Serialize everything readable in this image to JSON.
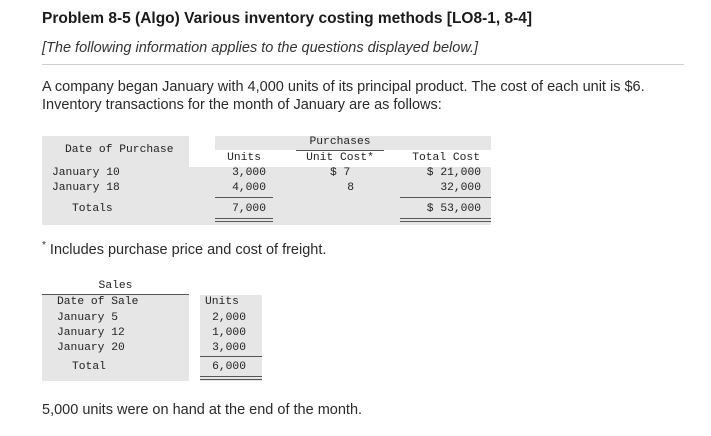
{
  "header": {
    "title": "Problem 8-5 (Algo) Various inventory costing methods [LO8-1, 8-4]",
    "subtitle": "[The following information applies to the questions displayed below.]"
  },
  "intro": "A company began January with 4,000 units of its principal product. The cost of each unit is $6. Inventory transactions for the month of January are as follows:",
  "purchases": {
    "col_date": "Date of Purchase",
    "group_header": "Purchases",
    "col_units": "Units",
    "col_unit_cost": "Unit Cost*",
    "col_total_cost": "Total Cost",
    "rows": [
      {
        "date": "January 10",
        "units": "3,000",
        "unit_cost": "$ 7",
        "total_cost": "$ 21,000"
      },
      {
        "date": "January 18",
        "units": "4,000",
        "unit_cost": "8",
        "total_cost": "32,000"
      }
    ],
    "totals_label": "Totals",
    "totals_units": "7,000",
    "totals_cost": "$ 53,000"
  },
  "note": {
    "mark": "*",
    "text": " Includes purchase price and cost of freight."
  },
  "sales": {
    "group_header": "Sales",
    "col_date": "Date of Sale",
    "col_units": "Units",
    "rows": [
      {
        "date": "January 5",
        "units": "2,000"
      },
      {
        "date": "January 12",
        "units": "1,000"
      },
      {
        "date": "January 20",
        "units": "3,000"
      }
    ],
    "total_label": "Total",
    "total_units": "6,000"
  },
  "footer": "5,000 units were on hand at the end of the month."
}
